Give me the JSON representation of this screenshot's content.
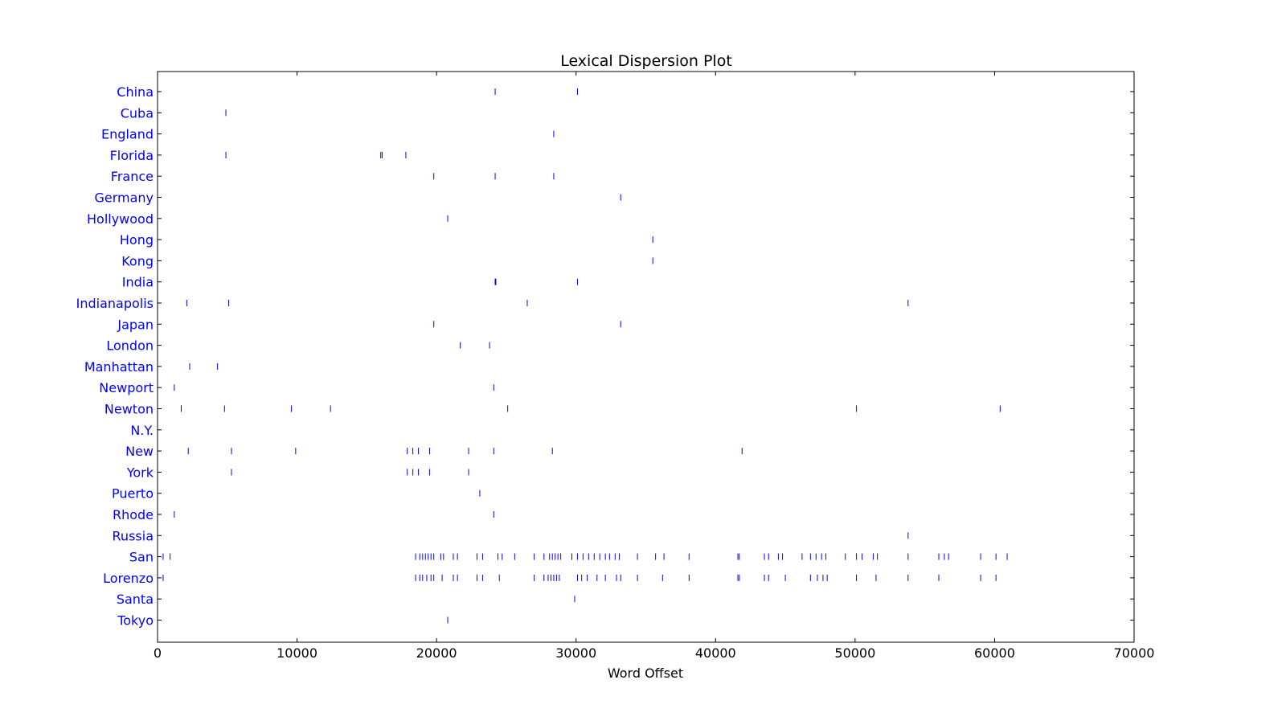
{
  "chart_data": {
    "type": "scatter",
    "title": "Lexical Dispersion Plot",
    "xlabel": "Word Offset",
    "ylabel": "",
    "xlim": [
      0,
      70000
    ],
    "xticks": [
      "0",
      "10000",
      "20000",
      "30000",
      "40000",
      "50000",
      "60000",
      "70000"
    ],
    "marker": "|",
    "grid": false,
    "legend": "none",
    "colors": {
      "marks": "#0000ff",
      "labels": "#0000ff",
      "axes": "#000000"
    },
    "words": [
      {
        "label": "China",
        "offsets": [
          24200,
          30100
        ]
      },
      {
        "label": "Cuba",
        "offsets": [
          4900
        ]
      },
      {
        "label": "England",
        "offsets": [
          28400
        ]
      },
      {
        "label": "Florida",
        "offsets": [
          4900,
          16000,
          16100,
          17800
        ]
      },
      {
        "label": "France",
        "offsets": [
          19800,
          24200,
          28400
        ]
      },
      {
        "label": "Germany",
        "offsets": [
          33200
        ]
      },
      {
        "label": "Hollywood",
        "offsets": [
          20800
        ]
      },
      {
        "label": "Hong",
        "offsets": [
          35500
        ]
      },
      {
        "label": "Kong",
        "offsets": [
          35500
        ]
      },
      {
        "label": "India",
        "offsets": [
          24200,
          24250,
          30100
        ]
      },
      {
        "label": "Indianapolis",
        "offsets": [
          2100,
          5100,
          26500,
          53800
        ]
      },
      {
        "label": "Japan",
        "offsets": [
          19800,
          33200
        ]
      },
      {
        "label": "London",
        "offsets": [
          21700,
          23800
        ]
      },
      {
        "label": "Manhattan",
        "offsets": [
          2300,
          4300
        ]
      },
      {
        "label": "Newport",
        "offsets": [
          1200,
          24100
        ]
      },
      {
        "label": "Newton",
        "offsets": [
          1700,
          4800,
          9600,
          12400,
          25100,
          50100,
          60400
        ]
      },
      {
        "label": "N.Y.",
        "offsets": []
      },
      {
        "label": "New",
        "offsets": [
          2200,
          5300,
          9900,
          17900,
          18300,
          18700,
          19500,
          22300,
          24100,
          28300,
          41900
        ]
      },
      {
        "label": "York",
        "offsets": [
          5300,
          17900,
          18300,
          18700,
          19500,
          22300
        ]
      },
      {
        "label": "Puerto",
        "offsets": [
          23100
        ]
      },
      {
        "label": "Rhode",
        "offsets": [
          1200,
          24100
        ]
      },
      {
        "label": "Russia",
        "offsets": [
          53800
        ]
      },
      {
        "label": "San",
        "offsets": [
          400,
          900,
          18500,
          18800,
          19000,
          19200,
          19400,
          19600,
          19800,
          20300,
          20500,
          21200,
          21500,
          22900,
          23300,
          24400,
          24700,
          25600,
          27000,
          27700,
          28100,
          28300,
          28500,
          28700,
          28900,
          29700,
          30100,
          30500,
          30900,
          31300,
          31700,
          32100,
          32400,
          32800,
          33100,
          34400,
          35700,
          36300,
          38100,
          41600,
          41700,
          43500,
          43800,
          44500,
          44800,
          46200,
          46800,
          47200,
          47600,
          47900,
          49300,
          50100,
          50500,
          51300,
          51600,
          53800,
          56000,
          56400,
          56700,
          59000,
          60100,
          60900
        ]
      },
      {
        "label": "Lorenzo",
        "offsets": [
          400,
          18500,
          18800,
          19000,
          19300,
          19600,
          19800,
          20400,
          21200,
          21500,
          22900,
          23300,
          24500,
          27000,
          27700,
          28000,
          28200,
          28400,
          28600,
          28800,
          30100,
          30400,
          30800,
          31500,
          32100,
          32900,
          33200,
          34400,
          36200,
          38100,
          41600,
          41700,
          43500,
          43800,
          45000,
          46800,
          47300,
          47700,
          48000,
          50100,
          51500,
          53800,
          56000,
          59000,
          60100
        ]
      },
      {
        "label": "Santa",
        "offsets": [
          29900
        ]
      },
      {
        "label": "Tokyo",
        "offsets": [
          20800
        ]
      }
    ]
  }
}
